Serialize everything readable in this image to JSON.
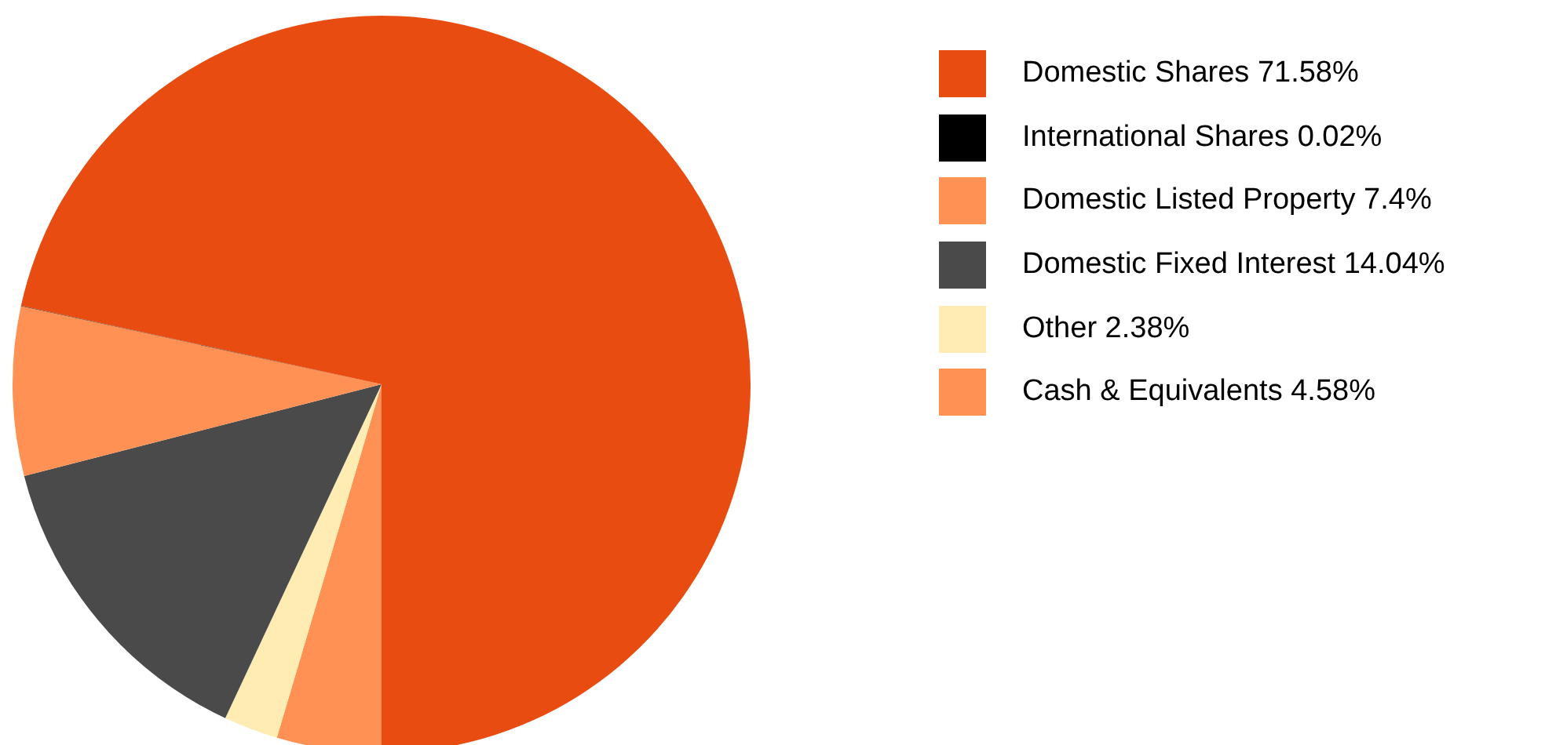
{
  "chart_data": {
    "type": "pie",
    "categories": [
      "Domestic Shares 71.58%",
      "International Shares 0.02%",
      "Domestic Listed Property 7.4%",
      "Domestic Fixed Interest 14.04%",
      "Other 2.38%",
      "Cash & Equivalents 4.58%"
    ],
    "values": [
      71.58,
      0.02,
      7.4,
      14.04,
      2.38,
      4.58
    ],
    "colors": [
      "#e84c10",
      "#000000",
      "#ff9155",
      "#4a4a4a",
      "#ffecb3",
      "#ff9155"
    ],
    "legend": "right"
  }
}
